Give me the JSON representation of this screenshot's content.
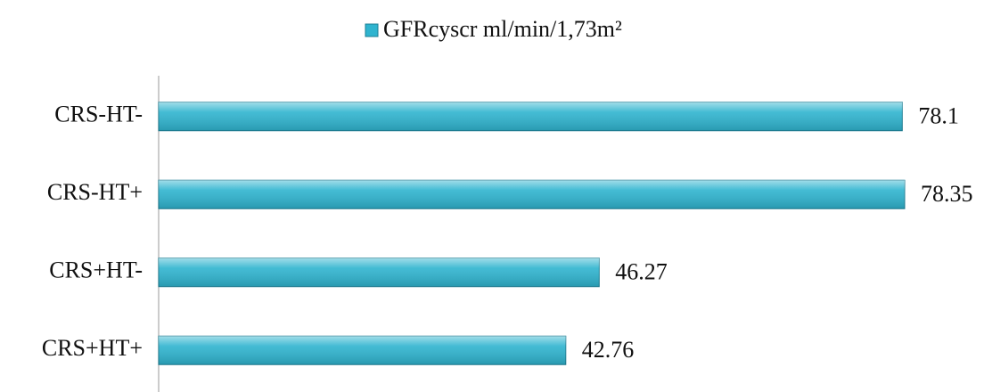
{
  "chart_data": {
    "type": "bar",
    "orientation": "horizontal",
    "categories": [
      "CRS-HT-",
      "CRS-HT+",
      "CRS+HT-",
      "CRS+HT+"
    ],
    "series": [
      {
        "name": "GFRcyscr ml/min/1,73m²",
        "color": "#2fb4cf",
        "values": [
          78.1,
          78.35,
          46.27,
          42.76
        ]
      }
    ],
    "legend": "top",
    "data_labels": true
  }
}
